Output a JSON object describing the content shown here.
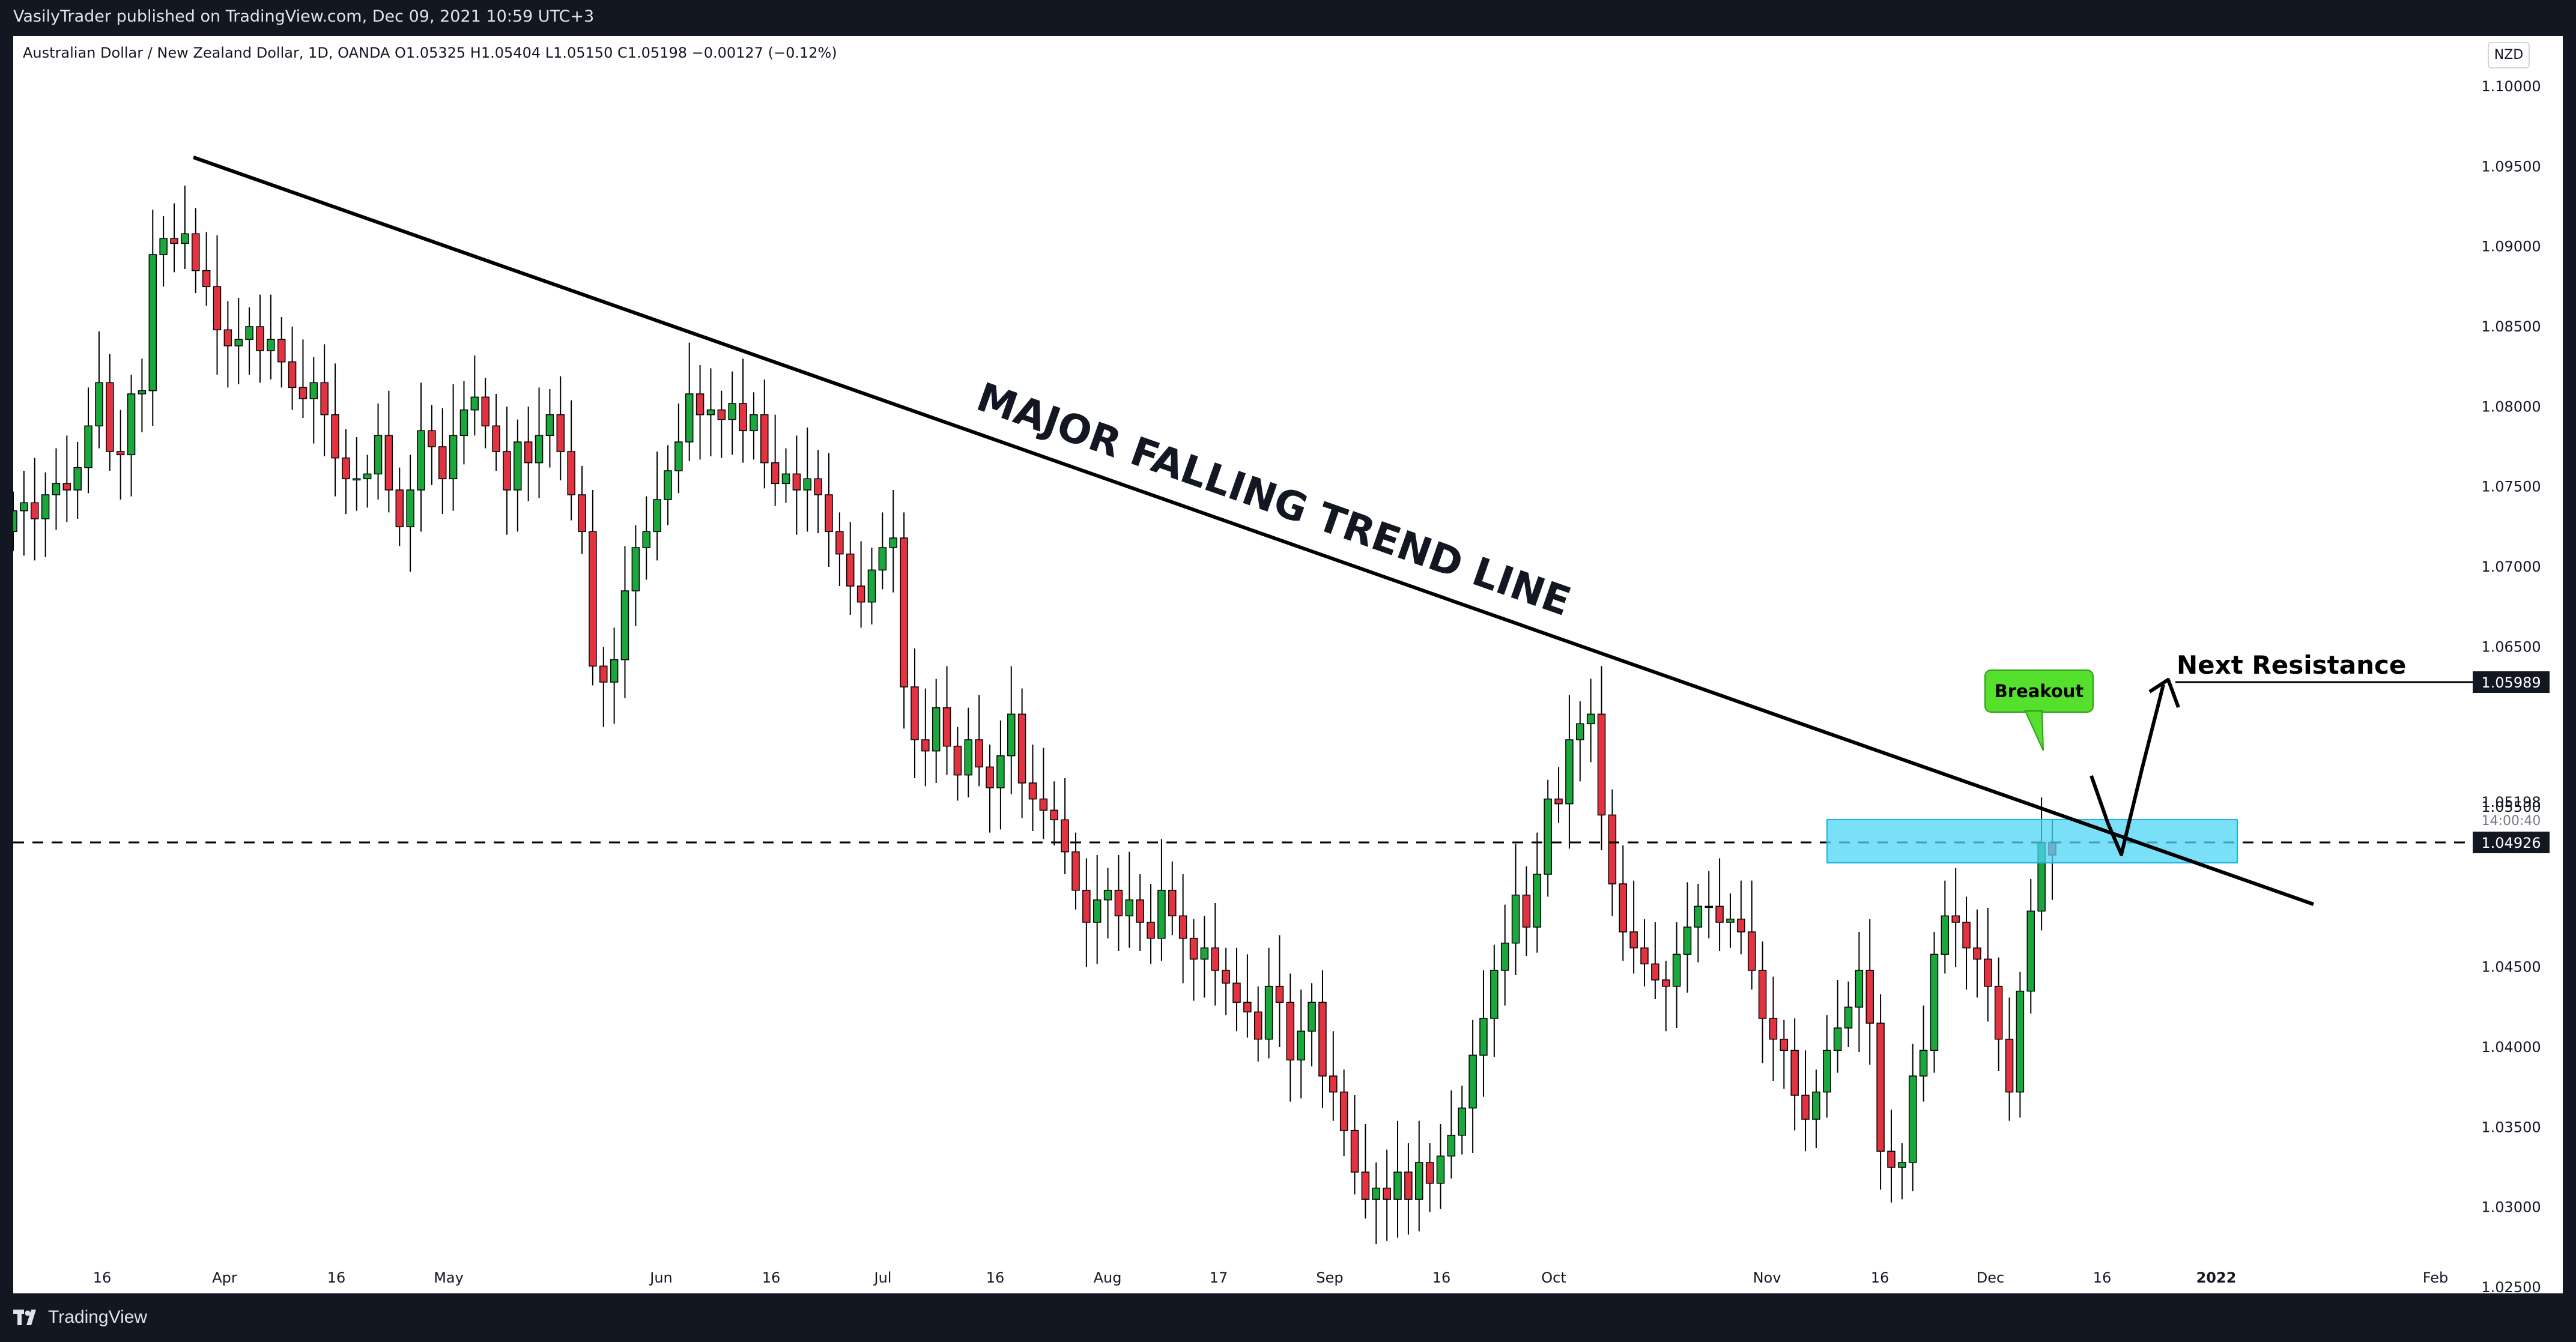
{
  "header": {
    "publish_line": "VasilyTrader published on TradingView.com, Dec 09, 2021 10:59 UTC+3"
  },
  "footer": {
    "logo_text": "TradingView"
  },
  "legend": {
    "text": "Australian Dollar / New Zealand Dollar, 1D, OANDA  O1.05325  H1.05404  L1.05150  C1.05198  −0.00127 (−0.12%)"
  },
  "currency": "NZD",
  "annotations": {
    "trend_line_label": "MAJOR FALLING TREND LINE",
    "breakout_label": "Breakout",
    "next_resistance_label": "Next Resistance"
  },
  "price_labels": {
    "resistance": "1.05989",
    "current": "1.05198",
    "countdown": "14:00:40",
    "dashed_level": "1.04926"
  },
  "colors": {
    "bull": "#26a69a",
    "bull_fill": "#1aa83c",
    "bear": "#e33340",
    "zone": "#4dd5f5",
    "breakout_bubble": "#56e02e"
  },
  "chart_data": {
    "type": "candlestick",
    "title": "Australian Dollar / New Zealand Dollar, 1D, OANDA",
    "y_axis": {
      "ticks": [
        "1.10000",
        "1.09500",
        "1.09000",
        "1.08500",
        "1.08000",
        "1.07500",
        "1.07000",
        "1.06500",
        "1.05500",
        "1.05198",
        "1.04500",
        "1.04000",
        "1.03500",
        "1.03000",
        "1.02500"
      ],
      "range": [
        1.0225,
        1.1035
      ]
    },
    "x_axis": {
      "ticks": [
        "16",
        "Apr",
        "16",
        "May",
        "Jun",
        "16",
        "Jul",
        "16",
        "Aug",
        "17",
        "Sep",
        "16",
        "Oct",
        "Nov",
        "16",
        "Dec",
        "16",
        "2022",
        "Feb"
      ]
    },
    "candle_closes": [
      1.0735,
      1.074,
      1.073,
      1.0745,
      1.0752,
      1.0748,
      1.0762,
      1.0788,
      1.0815,
      1.0772,
      1.077,
      1.0808,
      1.081,
      1.0895,
      1.0905,
      1.0902,
      1.0908,
      1.0885,
      1.0875,
      1.0848,
      1.0838,
      1.0842,
      1.085,
      1.0835,
      1.0842,
      1.0828,
      1.0812,
      1.0805,
      1.0815,
      1.0795,
      1.0768,
      1.0755,
      1.0755,
      1.0758,
      1.0782,
      1.0748,
      1.0725,
      1.0748,
      1.0785,
      1.0775,
      1.0755,
      1.0782,
      1.0798,
      1.0806,
      1.0788,
      1.0772,
      1.0748,
      1.0778,
      1.0765,
      1.0782,
      1.0795,
      1.0772,
      1.0745,
      1.0722,
      1.0638,
      1.0628,
      1.0642,
      1.0685,
      1.0712,
      1.0722,
      1.0742,
      1.076,
      1.0778,
      1.0808,
      1.0795,
      1.0798,
      1.0792,
      1.0802,
      1.0785,
      1.0795,
      1.0765,
      1.0752,
      1.0758,
      1.0748,
      1.0755,
      1.0745,
      1.0722,
      1.0708,
      1.0688,
      1.0678,
      1.0698,
      1.0712,
      1.0718,
      1.0625,
      1.0592,
      1.0585,
      1.0612,
      1.0588,
      1.057,
      1.0592,
      1.0575,
      1.0562,
      1.0582,
      1.0608,
      1.0565,
      1.0555,
      1.0548,
      1.0542,
      1.0522,
      1.0498,
      1.0478,
      1.0492,
      1.0498,
      1.0482,
      1.0492,
      1.0478,
      1.0468,
      1.0498,
      1.0482,
      1.0468,
      1.0455,
      1.0462,
      1.0448,
      1.044,
      1.0428,
      1.0422,
      1.0405,
      1.0438,
      1.0428,
      1.0392,
      1.041,
      1.0428,
      1.0382,
      1.0372,
      1.0348,
      1.0322,
      1.0305,
      1.0312,
      1.0305,
      1.0322,
      1.0305,
      1.0328,
      1.0315,
      1.0332,
      1.0345,
      1.0362,
      1.0395,
      1.0418,
      1.0448,
      1.0465,
      1.0495,
      1.0475,
      1.0508,
      1.0555,
      1.0552,
      1.0592,
      1.0602,
      1.0608,
      1.0545,
      1.0502,
      1.0472,
      1.0462,
      1.0452,
      1.0442,
      1.0438,
      1.0458,
      1.0475,
      1.0488,
      1.0488,
      1.0478,
      1.048,
      1.0472,
      1.0448,
      1.0418,
      1.0405,
      1.0398,
      1.037,
      1.0355,
      1.0372,
      1.0398,
      1.0412,
      1.0425,
      1.0448,
      1.0415,
      1.0335,
      1.0325,
      1.0328,
      1.0382,
      1.0398,
      1.0458,
      1.0482,
      1.0478,
      1.0462,
      1.0455,
      1.0438,
      1.0405,
      1.0372,
      1.0435,
      1.0485,
      1.0528,
      1.052
    ],
    "trend_line": {
      "from": {
        "date": "Mar 28",
        "price": 1.0953
      },
      "to": {
        "date": "Dec 26",
        "price": 1.0453
      }
    },
    "dashed_level": 1.04926,
    "resistance_level": 1.05989,
    "zone": {
      "top": 1.0515,
      "bottom": 1.0485
    }
  }
}
